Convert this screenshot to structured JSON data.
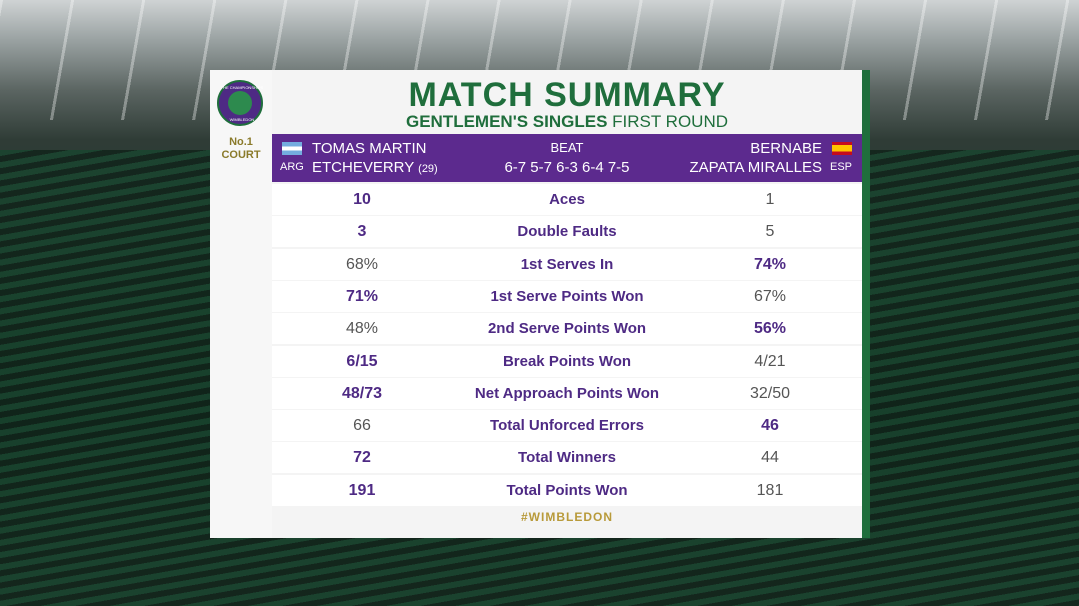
{
  "header": {
    "logo_top": "THE CHAMPIONSHIPS",
    "logo_bottom": "WIMBLEDON",
    "court_number": "No.1",
    "court_label": "COURT",
    "title": "MATCH SUMMARY",
    "event": "GENTLEMEN'S SINGLES",
    "round": "FIRST ROUND"
  },
  "players": {
    "left": {
      "first": "TOMAS MARTIN",
      "last": "ETCHEVERRY",
      "seed": "(29)",
      "country": "ARG"
    },
    "result": "BEAT",
    "score": "6-7 5-7 6-3 6-4 7-5",
    "right": {
      "first": "BERNABE",
      "last": "ZAPATA MIRALLES",
      "country": "ESP"
    }
  },
  "table": {
    "rows": [
      {
        "stat": "Aces",
        "left": "10",
        "right": "1",
        "leader": "left"
      },
      {
        "stat": "Double Faults",
        "left": "3",
        "right": "5",
        "leader": "left"
      },
      {
        "stat": "1st Serves In",
        "left": "68%",
        "right": "74%",
        "leader": "right"
      },
      {
        "stat": "1st Serve Points Won",
        "left": "71%",
        "right": "67%",
        "leader": "left"
      },
      {
        "stat": "2nd Serve Points Won",
        "left": "48%",
        "right": "56%",
        "leader": "right"
      },
      {
        "stat": "Break Points Won",
        "left": "6/15",
        "right": "4/21",
        "leader": "left"
      },
      {
        "stat": "Net Approach Points Won",
        "left": "48/73",
        "right": "32/50",
        "leader": "left"
      },
      {
        "stat": "Total Unforced Errors",
        "left": "66",
        "right": "46",
        "leader": "right"
      },
      {
        "stat": "Total Winners",
        "left": "72",
        "right": "44",
        "leader": "left"
      },
      {
        "stat": "Total Points Won",
        "left": "191",
        "right": "181",
        "leader": "left"
      }
    ]
  },
  "footer": "#WIMBLEDON"
}
